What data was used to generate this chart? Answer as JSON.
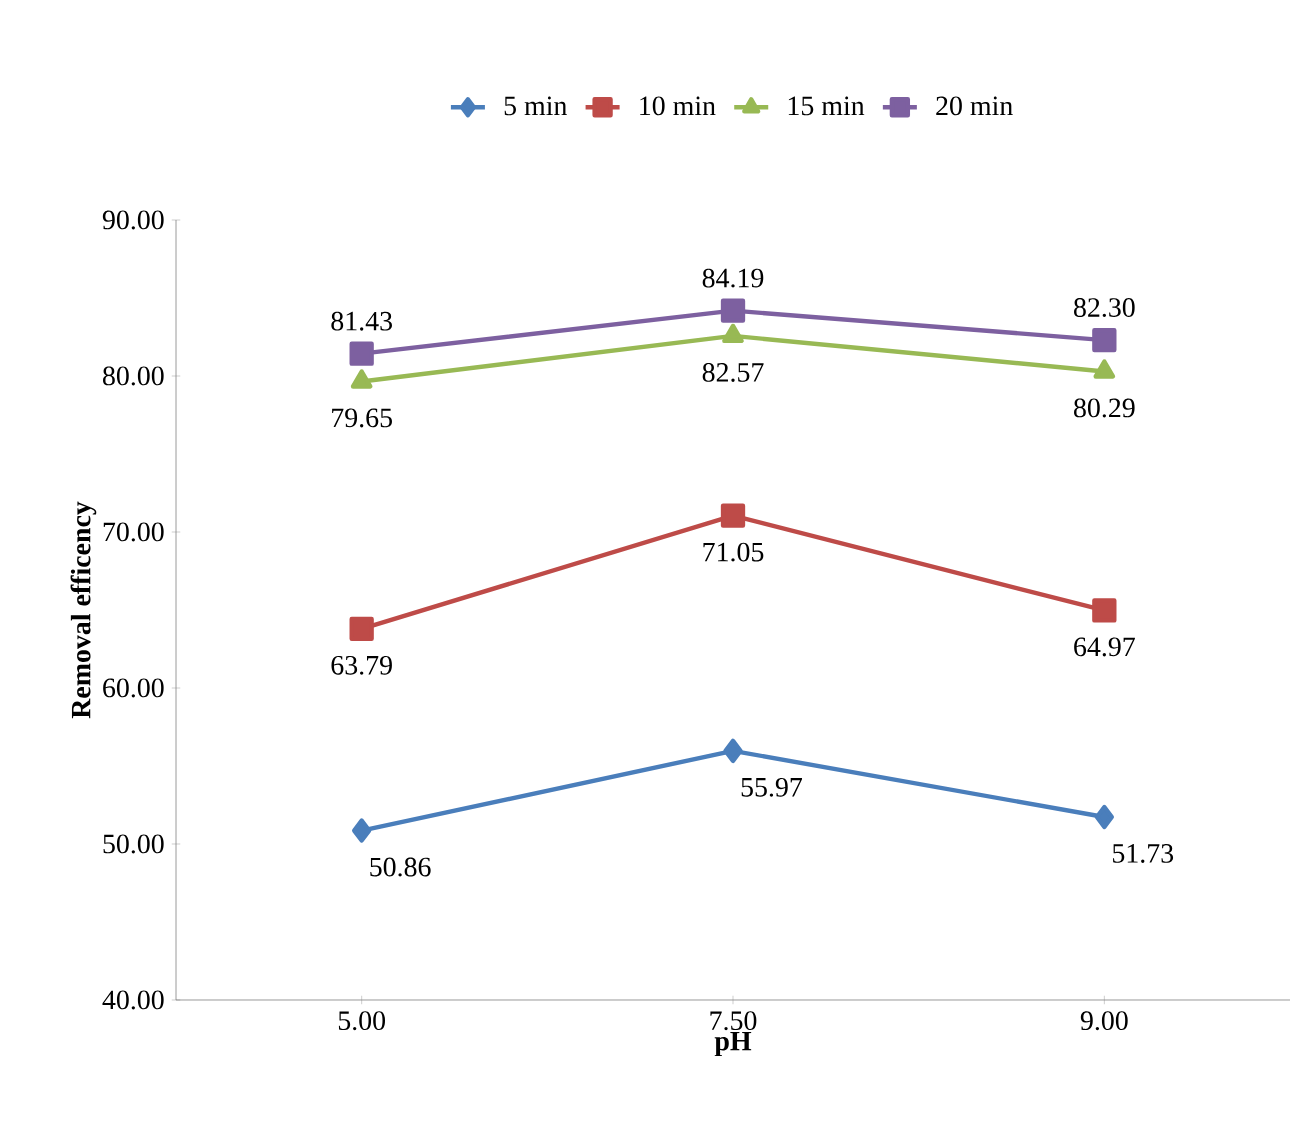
{
  "chart_data": {
    "type": "line",
    "xlabel": "pH",
    "ylabel": "Removal efficency",
    "categories": [
      "5.00",
      "7.50",
      "9.00"
    ],
    "ylim": [
      40,
      90
    ],
    "yticks": [
      {
        "value": 40,
        "label": "40.00"
      },
      {
        "value": 50,
        "label": "50.00"
      },
      {
        "value": 60,
        "label": "60.00"
      },
      {
        "value": 70,
        "label": "70.00"
      },
      {
        "value": 80,
        "label": "80.00"
      },
      {
        "value": 90,
        "label": "90.00"
      }
    ],
    "series": [
      {
        "name": "5 min",
        "color": "#4a7ebb",
        "marker": "diamond",
        "values": [
          50.86,
          55.97,
          51.73
        ],
        "value_labels": [
          "50.86",
          "55.97",
          "51.73"
        ]
      },
      {
        "name": "10 min",
        "color": "#be4b48",
        "marker": "square",
        "values": [
          63.79,
          71.05,
          64.97
        ],
        "value_labels": [
          "63.79",
          "71.05",
          "64.97"
        ]
      },
      {
        "name": "15 min",
        "color": "#98b954",
        "marker": "triangle",
        "values": [
          79.65,
          82.57,
          80.29
        ],
        "value_labels": [
          "79.65",
          "82.57",
          "80.29"
        ]
      },
      {
        "name": "20 min",
        "color": "#7d60a0",
        "marker": "square",
        "values": [
          81.43,
          84.19,
          82.3
        ],
        "value_labels": [
          "81.43",
          "84.19",
          "82.30"
        ]
      }
    ],
    "legend": "top",
    "grid": false
  }
}
